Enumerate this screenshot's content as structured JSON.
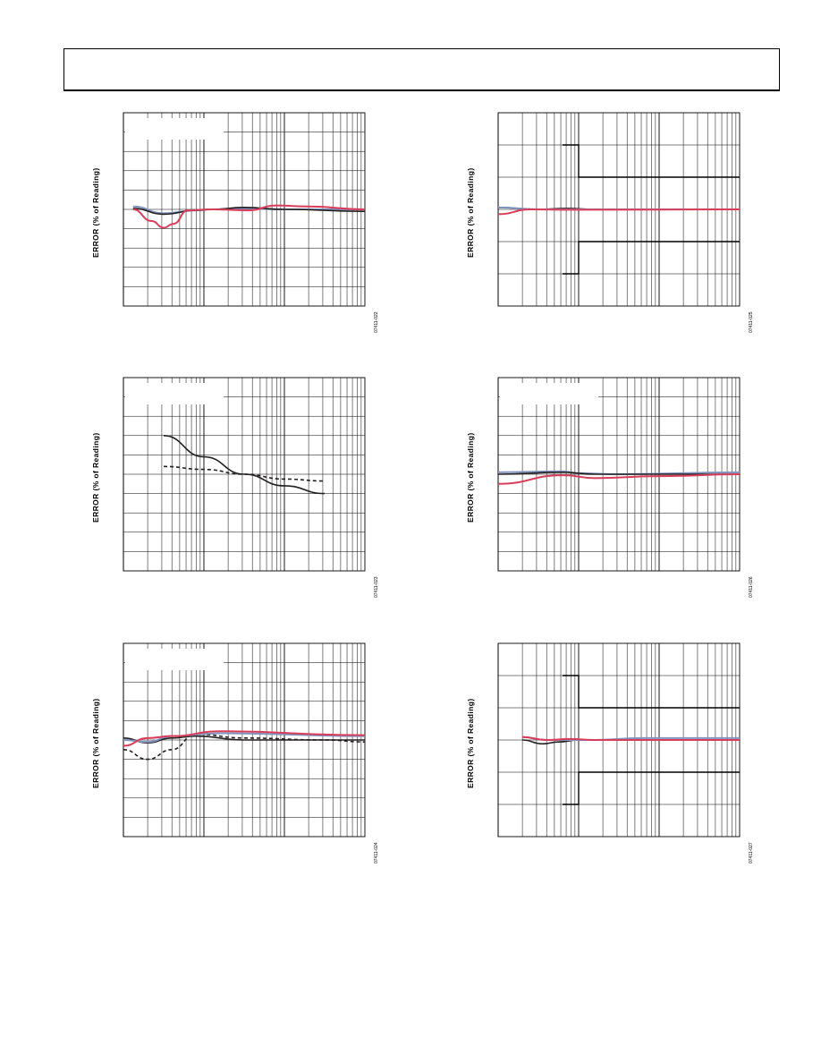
{
  "page": {
    "colors": {
      "black": "#231f20",
      "blue": "#7f93bd",
      "red": "#d93d5a",
      "grid": "#000000"
    }
  },
  "charts": [
    {
      "id": "c1",
      "ylabel": "ERROR (% of Reading)",
      "fig_id": "07411-022",
      "stacked_grid": false,
      "has_legend_box": true,
      "chart_data": {
        "type": "line",
        "xscale": "log",
        "xrange_decades": 3,
        "ygrid_lines": 10,
        "series": [
          {
            "color": "blue",
            "dash": false,
            "x": [
              0.12,
              0.5,
              0.9,
              1.1,
              1.5,
              2.0,
              3.0
            ],
            "y": [
              0.15,
              -0.2,
              -0.05,
              0.0,
              0.05,
              0.0,
              0.0
            ]
          },
          {
            "color": "black",
            "dash": false,
            "x": [
              0.12,
              0.5,
              0.9,
              1.1,
              1.5,
              2.0,
              3.0
            ],
            "y": [
              0.05,
              -0.25,
              -0.05,
              0.0,
              0.1,
              0.0,
              -0.1
            ]
          },
          {
            "color": "red",
            "dash": false,
            "x": [
              0.12,
              0.35,
              0.5,
              0.62,
              0.8,
              1.1,
              1.55,
              1.9,
              2.3,
              3.0
            ],
            "y": [
              0.0,
              -0.6,
              -0.95,
              -0.75,
              -0.05,
              0.0,
              -0.05,
              0.2,
              0.15,
              0.0
            ]
          }
        ]
      }
    },
    {
      "id": "c2",
      "ylabel": "ERROR (% of Reading)",
      "fig_id": "07411-025",
      "stacked_grid": false,
      "has_legend_box": false,
      "chart_data": {
        "type": "line",
        "xscale": "log",
        "xrange_decades": 3,
        "ygrid_lines": 6,
        "series": [
          {
            "color": "black",
            "dash": false,
            "x": [
              0.0,
              0.5,
              0.85,
              1.2,
              3.0
            ],
            "y": [
              0.1,
              0.0,
              0.05,
              0.0,
              0.0
            ]
          },
          {
            "color": "blue",
            "dash": false,
            "x": [
              0.0,
              0.5,
              1.2,
              3.0
            ],
            "y": [
              0.1,
              0.0,
              0.0,
              0.0
            ]
          },
          {
            "color": "red",
            "dash": false,
            "x": [
              0.0,
              0.4,
              1.0,
              3.0
            ],
            "y": [
              -0.25,
              0.0,
              -0.02,
              0.0
            ]
          }
        ]
      }
    },
    {
      "id": "c3",
      "ylabel": "ERROR (% of Reading)",
      "fig_id": "07411-023",
      "stacked_grid": false,
      "has_legend_box": true,
      "chart_data": {
        "type": "line",
        "xscale": "log",
        "xrange_decades": 3,
        "ygrid_lines": 10,
        "series": [
          {
            "color": "black",
            "dash": false,
            "x": [
              0.5,
              1.0,
              1.5,
              2.0,
              2.5
            ],
            "y": [
              2.0,
              0.9,
              0.0,
              -0.6,
              -1.0
            ]
          },
          {
            "color": "black",
            "dash": true,
            "x": [
              0.5,
              1.0,
              1.5,
              2.0,
              2.5
            ],
            "y": [
              0.4,
              0.25,
              0.0,
              -0.25,
              -0.35
            ]
          }
        ]
      }
    },
    {
      "id": "c4",
      "ylabel": "ERROR (% of Reading)",
      "fig_id": "07411-026",
      "stacked_grid": false,
      "has_legend_box": true,
      "chart_data": {
        "type": "line",
        "xscale": "log",
        "xrange_decades": 3,
        "ygrid_lines": 10,
        "series": [
          {
            "color": "blue",
            "dash": false,
            "x": [
              0.0,
              0.8,
              1.0,
              1.5,
              3.0
            ],
            "y": [
              0.1,
              0.15,
              0.05,
              0.0,
              0.1
            ]
          },
          {
            "color": "black",
            "dash": false,
            "x": [
              0.0,
              0.8,
              1.2,
              3.0
            ],
            "y": [
              0.0,
              0.1,
              0.0,
              0.0
            ]
          },
          {
            "color": "red",
            "dash": false,
            "x": [
              0.0,
              0.8,
              1.2,
              2.0,
              3.0
            ],
            "y": [
              -0.5,
              -0.05,
              -0.2,
              -0.1,
              0.0
            ]
          }
        ]
      }
    },
    {
      "id": "c5",
      "ylabel": "ERROR (% of Reading)",
      "fig_id": "07411-024",
      "stacked_grid": false,
      "has_legend_box": true,
      "chart_data": {
        "type": "line",
        "xscale": "log",
        "xrange_decades": 3,
        "ygrid_lines": 10,
        "series": [
          {
            "color": "black",
            "dash": true,
            "x": [
              0.0,
              0.3,
              0.6,
              0.9,
              1.5,
              2.5,
              3.0
            ],
            "y": [
              -0.5,
              -1.0,
              -0.5,
              0.3,
              0.1,
              0.0,
              -0.1
            ]
          },
          {
            "color": "black",
            "dash": false,
            "x": [
              0.0,
              0.3,
              0.6,
              0.9,
              1.5,
              3.0
            ],
            "y": [
              0.1,
              -0.15,
              0.1,
              0.2,
              0.0,
              0.0
            ]
          },
          {
            "color": "blue",
            "dash": false,
            "x": [
              0.0,
              0.3,
              0.6,
              1.2,
              3.0
            ],
            "y": [
              0.0,
              -0.1,
              0.2,
              0.35,
              0.2
            ]
          },
          {
            "color": "red",
            "dash": false,
            "x": [
              0.0,
              0.3,
              0.6,
              1.2,
              3.0
            ],
            "y": [
              -0.3,
              0.1,
              0.2,
              0.45,
              0.25
            ]
          }
        ]
      }
    },
    {
      "id": "c6",
      "ylabel": "ERROR (% of Reading)",
      "fig_id": "07411-027",
      "stacked_grid": false,
      "has_legend_box": false,
      "chart_data": {
        "type": "line",
        "xscale": "log",
        "xrange_decades": 3,
        "ygrid_lines": 6,
        "series": [
          {
            "color": "black",
            "dash": false,
            "x": [
              0.3,
              0.55,
              0.75,
              1.0,
              1.5,
              3.0
            ],
            "y": [
              0.0,
              -0.2,
              -0.1,
              0.0,
              0.0,
              0.0
            ]
          },
          {
            "color": "blue",
            "dash": false,
            "x": [
              0.3,
              0.6,
              0.9,
              1.2,
              1.8,
              3.0
            ],
            "y": [
              0.15,
              0.0,
              0.0,
              0.0,
              0.1,
              0.1
            ]
          },
          {
            "color": "red",
            "dash": false,
            "x": [
              0.3,
              0.6,
              0.9,
              1.2,
              3.0
            ],
            "y": [
              0.15,
              0.0,
              0.05,
              0.0,
              0.0
            ]
          }
        ]
      }
    }
  ]
}
